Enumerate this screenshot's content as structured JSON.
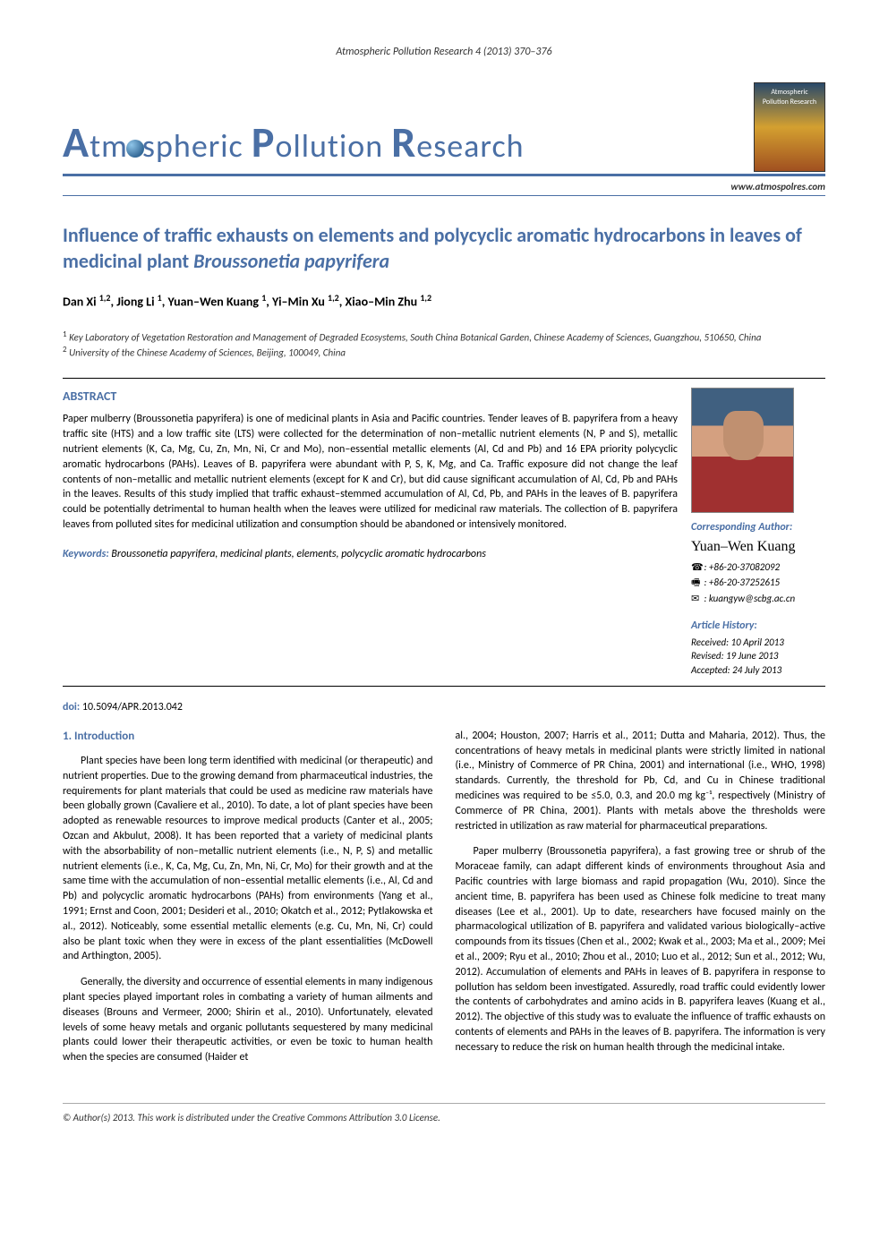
{
  "header_citation": "Atmospheric Pollution Research 4 (2013) 370–376",
  "journal_name_parts": {
    "a": "A",
    "tm": "tm",
    "spheric": "spheric ",
    "p": "P",
    "ollution": "ollution ",
    "r": "R",
    "esearch": "esearch"
  },
  "journal_logo_text": "Atmospheric Pollution Research",
  "website": "www.atmospolres.com",
  "article_title_pre": "Influence of traffic exhausts on elements and polycyclic aromatic hydrocarbons in leaves of medicinal plant ",
  "article_title_species": "Broussonetia papyrifera",
  "authors_html": "Dan Xi <sup>1,2</sup>, Jiong Li <sup>1</sup>, Yuan–Wen Kuang <sup>1</sup>, Yi–Min Xu <sup>1,2</sup>, Xiao–Min Zhu <sup>1,2</sup>",
  "affiliations": [
    "Key Laboratory of Vegetation Restoration and Management of Degraded Ecosystems, South China Botanical Garden, Chinese Academy of Sciences, Guangzhou, 510650, China",
    "University of the Chinese Academy of Sciences, Beijing, 100049, China"
  ],
  "abstract_heading": "ABSTRACT",
  "abstract_text": "Paper mulberry (Broussonetia papyrifera) is one of medicinal plants in Asia and Pacific countries. Tender leaves of B. papyrifera from a heavy traffic site (HTS) and a low traffic site (LTS) were collected for the determination of non–metallic nutrient elements (N, P and S), metallic nutrient elements (K, Ca, Mg, Cu, Zn, Mn, Ni, Cr and Mo), non–essential metallic elements (Al, Cd and Pb) and 16 EPA priority polycyclic aromatic hydrocarbons (PAHs). Leaves of B. papyrifera were abundant with P, S, K, Mg, and Ca. Traffic exposure did not change the leaf contents of non–metallic and metallic nutrient elements (except for K and Cr), but did cause significant accumulation of Al, Cd, Pb and PAHs in the leaves. Results of this study implied that traffic exhaust–stemmed accumulation of Al, Cd, Pb, and PAHs in the leaves of B. papyrifera could be potentially detrimental to human health when the leaves were utilized for medicinal raw materials. The collection of B. papyrifera leaves from polluted sites for medicinal utilization and consumption should be abandoned or intensively monitored.",
  "keywords_label": "Keywords:",
  "keywords": " Broussonetia papyrifera, medicinal plants, elements, polycyclic aromatic hydrocarbons",
  "corr_heading": "Corresponding Author:",
  "corr_name": "Yuan–Wen Kuang",
  "phone": "+86-20-37082092",
  "fax": "+86-20-37252615",
  "email": "kuangyw@scbg.ac.cn",
  "history_heading": "Article History:",
  "history": {
    "received": "Received: 10 April 2013",
    "revised": "Revised: 19 June 2013",
    "accepted": "Accepted: 24 July 2013"
  },
  "doi_label": "doi:",
  "doi": " 10.5094/APR.2013.042",
  "section1_heading": "1. Introduction",
  "col1_p1": "Plant species have been long term identified with medicinal (or therapeutic) and nutrient properties. Due to the growing demand from pharmaceutical industries, the requirements for plant materials that could be used as medicine raw materials have been globally grown (Cavaliere et al., 2010). To date, a lot of plant species have been adopted as renewable resources to improve medical products (Canter et al., 2005; Ozcan and Akbulut, 2008). It has been reported that a variety of medicinal plants with the absorbability of non–metallic nutrient elements (i.e., N, P, S) and metallic nutrient elements (i.e., K, Ca, Mg, Cu, Zn, Mn, Ni, Cr, Mo) for their growth and at the same time with the accumulation of non–essential metallic elements (i.e., Al, Cd and Pb) and polycyclic aromatic hydrocarbons (PAHs) from environments (Yang et al., 1991; Ernst and Coon, 2001; Desideri et al., 2010; Okatch et al., 2012; Pytlakowska et al., 2012). Noticeably, some essential metallic elements (e.g. Cu, Mn, Ni, Cr) could also be plant toxic when they were in excess of the plant essentialities (McDowell and Arthington, 2005).",
  "col1_p2": "Generally, the diversity and occurrence of essential elements in many indigenous plant species played important roles in combating a variety of human ailments and diseases (Brouns and Vermeer, 2000; Shirin et al., 2010). Unfortunately, elevated levels of some heavy metals and organic pollutants sequestered by many medicinal plants could lower their therapeutic activities, or even be toxic to human health when the species are consumed (Haider et",
  "col2_p1": "al., 2004; Houston, 2007; Harris et al., 2011; Dutta and Maharia, 2012). Thus, the concentrations of heavy metals in medicinal plants were strictly limited in national (i.e., Ministry of Commerce of PR China, 2001) and international (i.e., WHO, 1998) standards. Currently, the threshold for Pb, Cd, and Cu in Chinese traditional medicines was required to be ≤5.0, 0.3, and 20.0 mg kg⁻¹, respectively (Ministry of Commerce of PR China, 2001). Plants with metals above the thresholds were restricted in utilization as raw material for pharmaceutical preparations.",
  "col2_p2": "Paper mulberry (Broussonetia papyrifera), a fast growing tree or shrub of the Moraceae family, can adapt different kinds of environments throughout Asia and Pacific countries with large biomass and rapid propagation (Wu, 2010). Since the ancient time, B. papyrifera has been used as Chinese folk medicine to treat many diseases (Lee et al., 2001). Up to date, researchers have focused mainly on the pharmacological utilization of B. papyrifera and validated various biologically–active compounds from its tissues (Chen et al., 2002; Kwak et al., 2003; Ma et al., 2009; Mei et al., 2009; Ryu et al., 2010; Zhou et al., 2010; Luo et al., 2012; Sun et al., 2012; Wu, 2012). Accumulation of elements and PAHs in leaves of B. papyrifera in response to pollution has seldom been investigated. Assuredly, road traffic could evidently lower the contents of carbohydrates and amino acids in B. papyrifera leaves (Kuang et al., 2012). The objective of this study was to evaluate the influence of traffic exhausts on contents of elements and PAHs in the leaves of B. papyrifera. The information is very necessary to reduce the risk on human health through the medicinal intake.",
  "copyright": "© Author(s) 2013. This work is distributed under the Creative Commons Attribution 3.0 License.",
  "colors": {
    "accent": "#4a6fa5",
    "text": "#000000",
    "muted": "#333333",
    "background": "#ffffff"
  },
  "typography": {
    "body_fontsize": 12,
    "title_fontsize": 22,
    "journal_fontsize": 36,
    "heading_fontsize": 14
  }
}
